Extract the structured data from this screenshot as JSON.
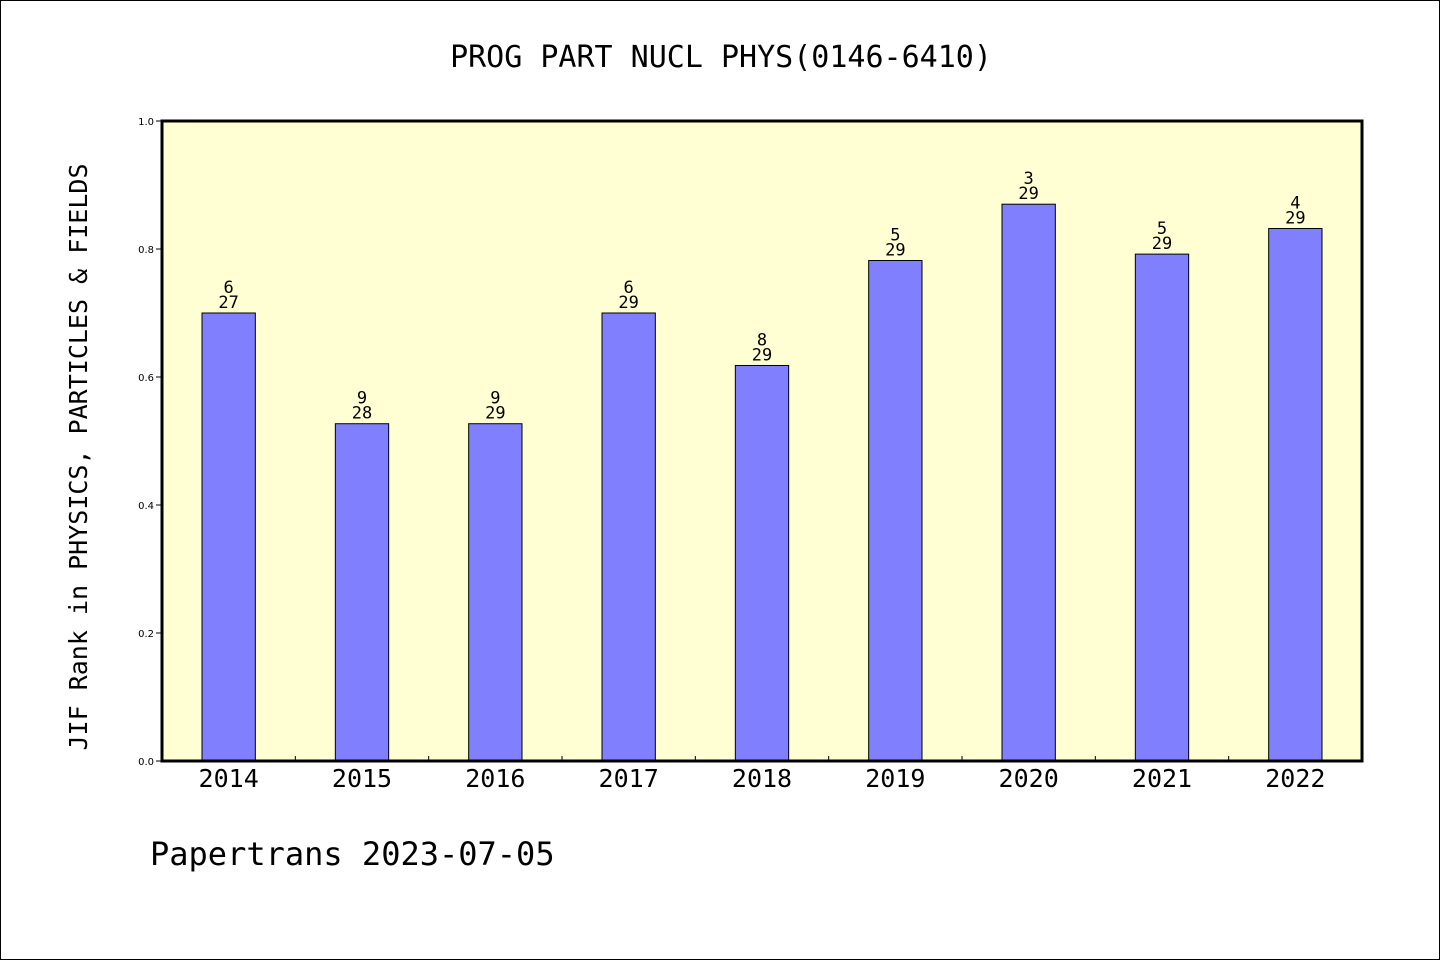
{
  "chart_data": {
    "type": "bar",
    "title": "PROG PART NUCL PHYS(0146-6410)",
    "xlabel": "",
    "ylabel": "JIF Rank in PHYSICS, PARTICLES & FIELDS",
    "categories": [
      "2014",
      "2015",
      "2016",
      "2017",
      "2018",
      "2019",
      "2020",
      "2021",
      "2022"
    ],
    "values": [
      0.7,
      0.527,
      0.527,
      0.7,
      0.618,
      0.782,
      0.87,
      0.792,
      0.832
    ],
    "rank_labels": [
      {
        "rank": "6",
        "total": "27"
      },
      {
        "rank": "9",
        "total": "28"
      },
      {
        "rank": "9",
        "total": "29"
      },
      {
        "rank": "6",
        "total": "29"
      },
      {
        "rank": "8",
        "total": "29"
      },
      {
        "rank": "5",
        "total": "29"
      },
      {
        "rank": "3",
        "total": "29"
      },
      {
        "rank": "5",
        "total": "29"
      },
      {
        "rank": "4",
        "total": "29"
      }
    ],
    "ylim": [
      0,
      1.0
    ],
    "yticks": [
      "0.0",
      "0.2",
      "0.4",
      "0.6",
      "0.8",
      "1.0"
    ],
    "grid": false,
    "colors": {
      "plot_background": "#ffffd3",
      "bar_fill": "#8080ff",
      "bar_stroke": "#000000"
    }
  },
  "footer": {
    "text": "Papertrans 2023-07-05"
  }
}
